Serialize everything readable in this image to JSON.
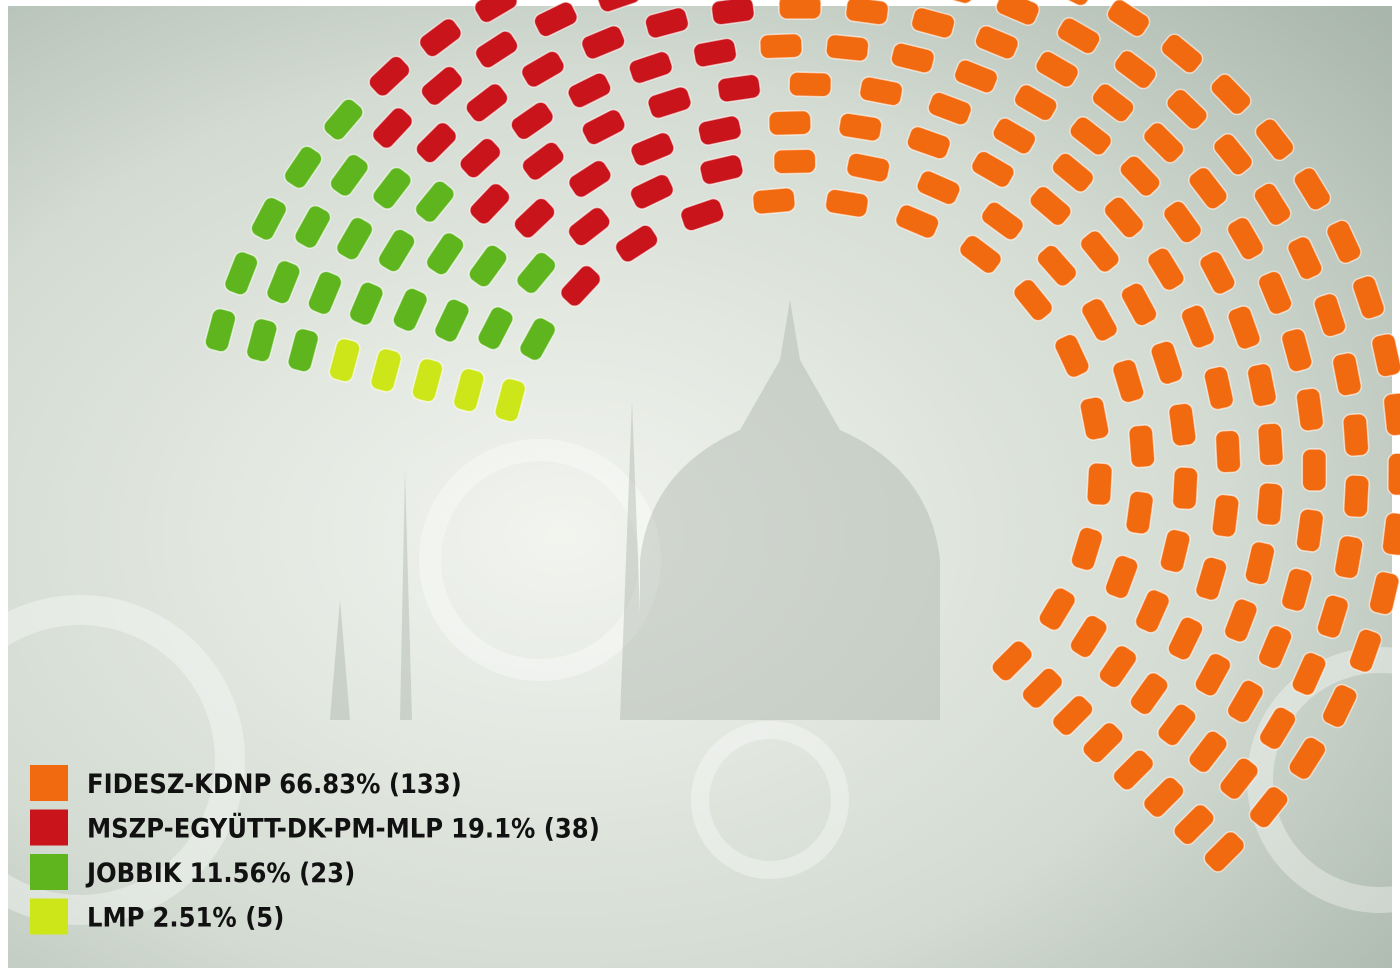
{
  "chart_data": {
    "type": "parliament",
    "categories": [
      "FIDESZ-KDNP",
      "MSZP-EGYÜTT-DK-PM-MLP",
      "JOBBIK",
      "LMP"
    ],
    "values": [
      133,
      38,
      23,
      5
    ],
    "value_labels": [
      "66.83% (133)",
      "19.1% (38)",
      "11.56% (23)",
      "2.51% (5)"
    ],
    "colors": [
      "#f26a10",
      "#c8141a",
      "#5fb51e",
      "#cce61a"
    ],
    "legend": "bottom-left"
  }
}
